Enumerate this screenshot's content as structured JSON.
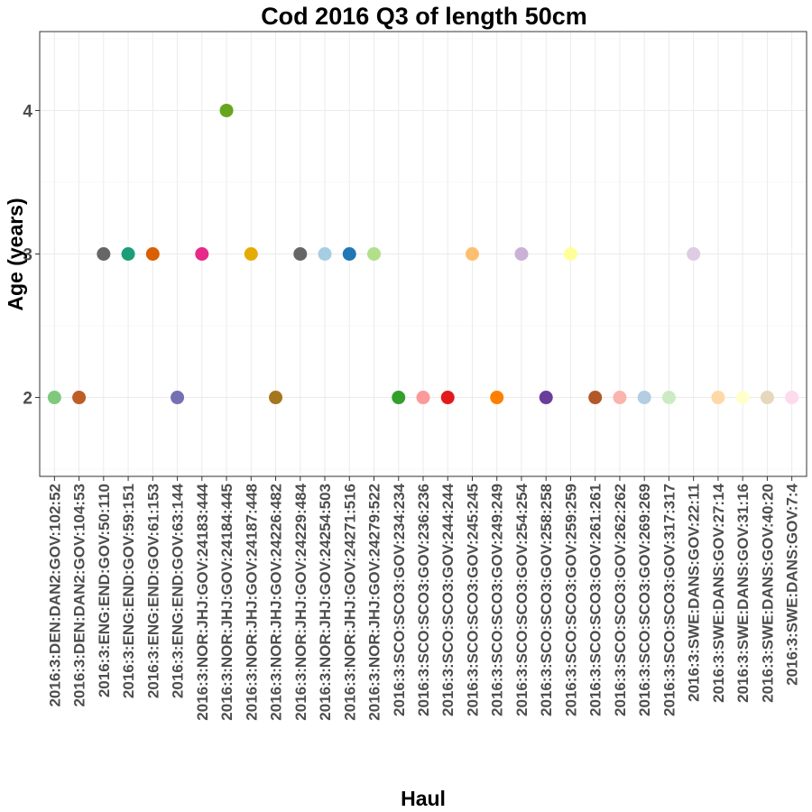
{
  "chart_data": {
    "type": "scatter",
    "title": "Cod 2016 Q3 of length 50cm",
    "xlabel": "Haul",
    "ylabel": "Age (years)",
    "ylim": [
      1.45,
      4.55
    ],
    "yticks": [
      2,
      3,
      4
    ],
    "grid": true,
    "legend": "none",
    "categories": [
      "2016:3:DEN:DAN2:GOV:102:52",
      "2016:3:DEN:DAN2:GOV:104:53",
      "2016:3:ENG:END:GOV:50:110",
      "2016:3:ENG:END:GOV:59:151",
      "2016:3:ENG:END:GOV:61:153",
      "2016:3:ENG:END:GOV:63:144",
      "2016:3:NOR:JHJ:GOV:24183:444",
      "2016:3:NOR:JHJ:GOV:24184:445",
      "2016:3:NOR:JHJ:GOV:24187:448",
      "2016:3:NOR:JHJ:GOV:24226:482",
      "2016:3:NOR:JHJ:GOV:24229:484",
      "2016:3:NOR:JHJ:GOV:24254:503",
      "2016:3:NOR:JHJ:GOV:24271:516",
      "2016:3:NOR:JHJ:GOV:24279:522",
      "2016:3:SCO:SCO3:GOV:234:234",
      "2016:3:SCO:SCO3:GOV:236:236",
      "2016:3:SCO:SCO3:GOV:244:244",
      "2016:3:SCO:SCO3:GOV:245:245",
      "2016:3:SCO:SCO3:GOV:249:249",
      "2016:3:SCO:SCO3:GOV:254:254",
      "2016:3:SCO:SCO3:GOV:258:258",
      "2016:3:SCO:SCO3:GOV:259:259",
      "2016:3:SCO:SCO3:GOV:261:261",
      "2016:3:SCO:SCO3:GOV:262:262",
      "2016:3:SCO:SCO3:GOV:269:269",
      "2016:3:SCO:SCO3:GOV:317:317",
      "2016:3:SWE:DANS:GOV:22:11",
      "2016:3:SWE:DANS:GOV:27:14",
      "2016:3:SWE:DANS:GOV:31:16",
      "2016:3:SWE:DANS:GOV:40:20",
      "2016:3:SWE:DANS:GOV:7:4"
    ],
    "values": [
      2,
      2,
      3,
      3,
      3,
      2,
      3,
      4,
      3,
      2,
      3,
      3,
      3,
      3,
      2,
      2,
      2,
      3,
      2,
      3,
      2,
      3,
      2,
      2,
      2,
      2,
      3,
      2,
      2,
      2,
      2
    ],
    "colors": [
      "#7fc97f",
      "#be5e26",
      "#666666",
      "#1b9e77",
      "#d95f02",
      "#7570b3",
      "#e7298a",
      "#66a61e",
      "#e6ab02",
      "#a6761d",
      "#666666",
      "#a6cee3",
      "#1f78b4",
      "#b2df8a",
      "#33a02c",
      "#fb9a99",
      "#e31a1c",
      "#fdbf6f",
      "#ff7f00",
      "#cab2d6",
      "#6a3d9a",
      "#ffff99",
      "#b15928",
      "#fbb4ae",
      "#b3cde3",
      "#ccebc5",
      "#decbe4",
      "#fed9a6",
      "#ffffcc",
      "#e5d8bd",
      "#fddaec"
    ]
  }
}
